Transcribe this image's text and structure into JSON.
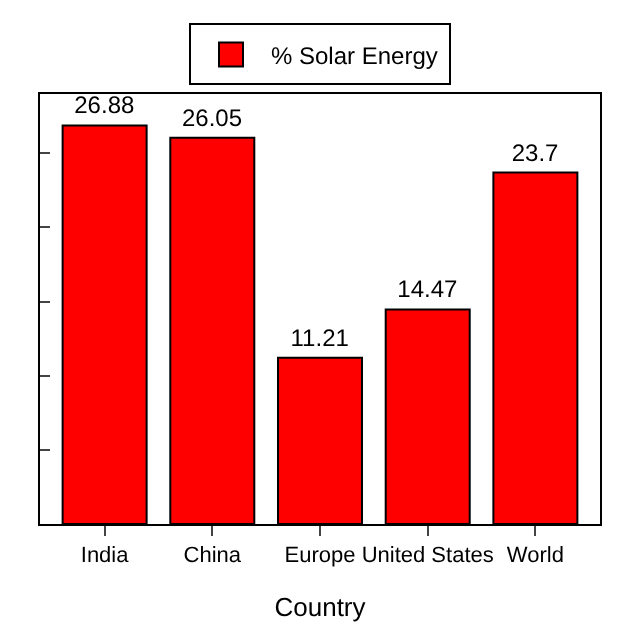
{
  "chart_data": {
    "type": "bar",
    "xlabel": "Country",
    "categories": [
      "India",
      "China",
      "Europe",
      "United States",
      "World"
    ],
    "series": [
      {
        "name": "% Solar Energy",
        "color": "#ff0000",
        "values": [
          26.88,
          26.05,
          11.21,
          14.47,
          23.7
        ]
      }
    ],
    "ylim": [
      0,
      29
    ],
    "yticks": [
      {
        "value": 0,
        "label": null
      },
      {
        "value": 5,
        "label": null
      },
      {
        "value": 10,
        "label": null
      },
      {
        "value": 15,
        "label": null
      },
      {
        "value": 20,
        "label": null
      },
      {
        "value": 25,
        "label": null
      }
    ],
    "tick_labels": "x",
    "data_labels": true,
    "legend": "top"
  }
}
